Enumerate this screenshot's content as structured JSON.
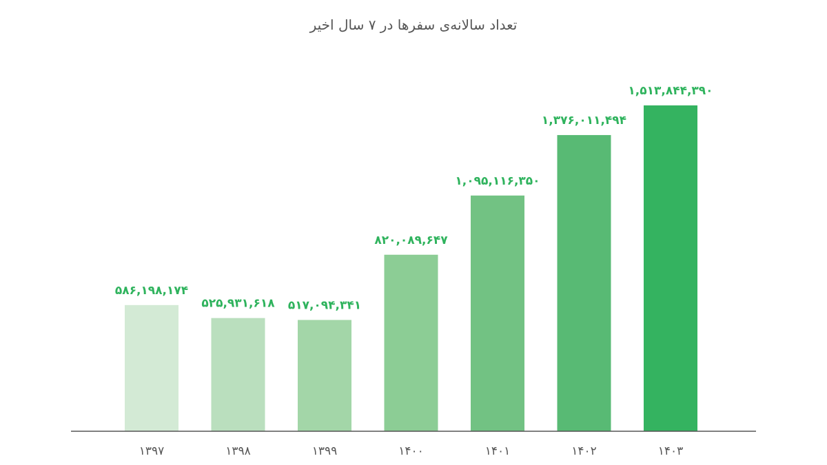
{
  "chart_data": {
    "type": "bar",
    "title": "تعداد سالانه‌ی سفرها در ۷ سال اخیر",
    "xlabel": "",
    "ylabel": "",
    "categories": [
      "۱۳۹۷",
      "۱۳۹۸",
      "۱۳۹۹",
      "۱۴۰۰",
      "۱۴۰۱",
      "۱۴۰۲",
      "۱۴۰۳"
    ],
    "values": [
      586198174,
      525931618,
      517094341,
      820089647,
      1095116350,
      1376011494,
      1513844390
    ],
    "value_labels": [
      "۵۸۶,۱۹۸,۱۷۴",
      "۵۲۵,۹۳۱,۶۱۸",
      "۵۱۷,۰۹۴,۳۴۱",
      "۸۲۰,۰۸۹,۶۴۷",
      "۱,۰۹۵,۱۱۶,۳۵۰",
      "۱,۳۷۶,۰۱۱,۴۹۴",
      "۱,۵۱۳,۸۴۴,۳۹۰"
    ],
    "colors": [
      "#d3ead5",
      "#badfbe",
      "#a3d6a8",
      "#8ccd95",
      "#72c283",
      "#58ba74",
      "#34b360"
    ],
    "ylim": [
      0,
      1513844390
    ],
    "grid": false,
    "legend": "none"
  }
}
